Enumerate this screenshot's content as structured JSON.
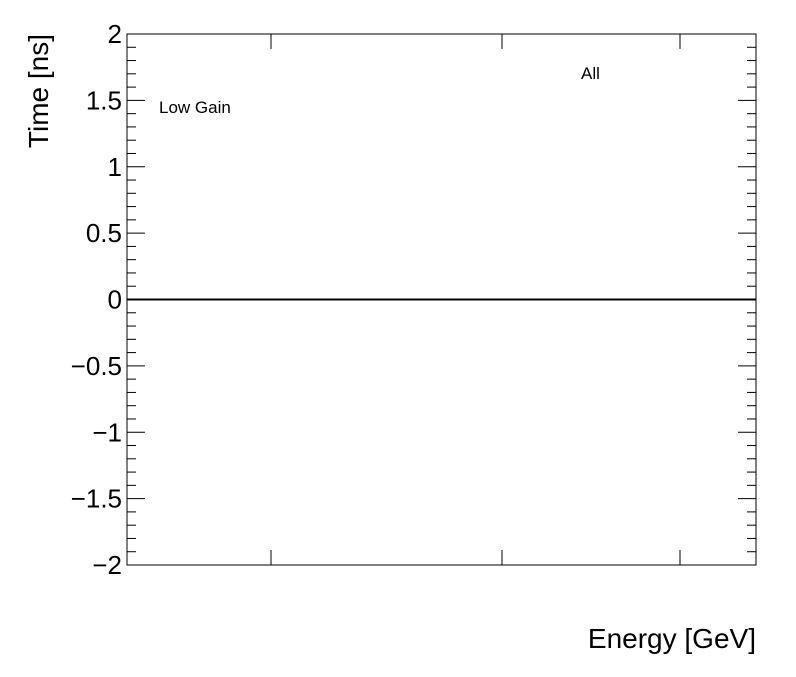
{
  "chart_data": {
    "type": "empty",
    "xlabel": "Energy [GeV]",
    "ylabel": "Time [ns]",
    "annotations": [
      "Low Gain",
      "All"
    ],
    "ylim": [
      -2,
      2
    ],
    "yticks": [
      {
        "value": -2,
        "label": "−2"
      },
      {
        "value": -1.5,
        "label": "−1.5"
      },
      {
        "value": -1,
        "label": "−1"
      },
      {
        "value": -0.5,
        "label": "−0.5"
      },
      0,
      0.5,
      1,
      1.5,
      2
    ],
    "hline": 0,
    "color": "#000000"
  }
}
